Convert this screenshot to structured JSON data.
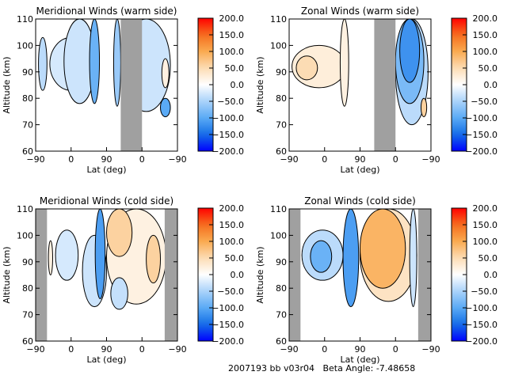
{
  "footer": {
    "text": "2007193 bb v03r04   Beta Angle: -7.48658",
    "dataset_id": "2007193",
    "version": "bb v03r04",
    "beta_angle_label": "Beta Angle:",
    "beta_angle": -7.48658
  },
  "chart_data": [
    {
      "type": "heatmap",
      "title": "Meridional Winds (warm side)",
      "xlabel": "Lat (deg)",
      "ylabel": "Altitude (km)",
      "xticks": [
        "-90",
        "0",
        "90",
        "0",
        "-90"
      ],
      "yticks": [
        "60",
        "70",
        "80",
        "90",
        "100",
        "110"
      ],
      "ylim": [
        60,
        110
      ],
      "colorbar": {
        "ticks": [
          "200.0",
          "150.0",
          "100.0",
          "50.0",
          "0.0",
          "-50.0",
          "-100.0",
          "-150.0",
          "-200.0"
        ],
        "range": [
          -200,
          200
        ]
      },
      "nodata_bands": [
        [
          0.6,
          0.75
        ]
      ],
      "blobs": [
        {
          "x": [
            0.02,
            0.08
          ],
          "y": [
            83,
            103
          ],
          "v": -40
        },
        {
          "x": [
            0.1,
            0.4
          ],
          "y": [
            83,
            103
          ],
          "v": -25
        },
        {
          "x": [
            0.2,
            0.42
          ],
          "y": [
            78,
            110
          ],
          "v": -30
        },
        {
          "x": [
            0.38,
            0.45
          ],
          "y": [
            78,
            110
          ],
          "v": -90
        },
        {
          "x": [
            0.55,
            0.6
          ],
          "y": [
            77,
            110
          ],
          "v": -60
        },
        {
          "x": [
            0.61,
            0.95
          ],
          "y": [
            75,
            110
          ],
          "v": -30
        },
        {
          "x": [
            0.62,
            0.72
          ],
          "y": [
            80,
            110
          ],
          "v": -90
        },
        {
          "x": [
            0.88,
            0.95
          ],
          "y": [
            73,
            80
          ],
          "v": -100
        },
        {
          "x": [
            0.89,
            0.94
          ],
          "y": [
            84,
            95
          ],
          "v": 20
        }
      ]
    },
    {
      "type": "heatmap",
      "title": "Zonal Winds (warm side)",
      "xlabel": "Lat (deg)",
      "ylabel": "Altitude (km)",
      "xticks": [
        "-90",
        "0",
        "90",
        "0",
        "-90"
      ],
      "yticks": [
        "60",
        "70",
        "80",
        "90",
        "100",
        "110"
      ],
      "ylim": [
        60,
        110
      ],
      "colorbar": {
        "ticks": [
          "200.0",
          "150.0",
          "100.0",
          "50.0",
          "0.0",
          "-50.0",
          "-100.0",
          "-150.0",
          "-200.0"
        ],
        "range": [
          -200,
          200
        ]
      },
      "nodata_bands": [
        [
          0.6,
          0.75
        ]
      ],
      "blobs": [
        {
          "x": [
            0.02,
            0.4
          ],
          "y": [
            84,
            100
          ],
          "v": 25
        },
        {
          "x": [
            0.05,
            0.2
          ],
          "y": [
            87,
            96
          ],
          "v": 50
        },
        {
          "x": [
            0.36,
            0.42
          ],
          "y": [
            77,
            110
          ],
          "v": 20
        },
        {
          "x": [
            0.75,
            0.98
          ],
          "y": [
            70,
            110
          ],
          "v": -40
        },
        {
          "x": [
            0.75,
            0.95
          ],
          "y": [
            78,
            110
          ],
          "v": -80
        },
        {
          "x": [
            0.78,
            0.92
          ],
          "y": [
            86,
            110
          ],
          "v": -120
        },
        {
          "x": [
            0.93,
            0.97
          ],
          "y": [
            73,
            80
          ],
          "v": 60
        }
      ]
    },
    {
      "type": "heatmap",
      "title": "Meridional Winds (cold side)",
      "xlabel": "Lat (deg)",
      "ylabel": "Altitude (km)",
      "xticks": [
        "-90",
        "0",
        "90",
        "0",
        "-90"
      ],
      "yticks": [
        "60",
        "70",
        "80",
        "90",
        "100",
        "110"
      ],
      "ylim": [
        60,
        110
      ],
      "colorbar": {
        "ticks": [
          "200.0",
          "150.0",
          "100.0",
          "50.0",
          "0.0",
          "-50.0",
          "-100.0",
          "-150.0",
          "-200.0"
        ],
        "range": [
          -200,
          200
        ]
      },
      "nodata_bands": [
        [
          0.0,
          0.08
        ],
        [
          0.91,
          1.0
        ]
      ],
      "blobs": [
        {
          "x": [
            0.09,
            0.12
          ],
          "y": [
            85,
            98
          ],
          "v": 20
        },
        {
          "x": [
            0.14,
            0.3
          ],
          "y": [
            83,
            102
          ],
          "v": -25
        },
        {
          "x": [
            0.33,
            0.5
          ],
          "y": [
            73,
            100
          ],
          "v": -30
        },
        {
          "x": [
            0.42,
            0.49
          ],
          "y": [
            76,
            110
          ],
          "v": -110
        },
        {
          "x": [
            0.5,
            0.92
          ],
          "y": [
            74,
            110
          ],
          "v": 20
        },
        {
          "x": [
            0.5,
            0.68
          ],
          "y": [
            92,
            110
          ],
          "v": 60
        },
        {
          "x": [
            0.78,
            0.88
          ],
          "y": [
            82,
            100
          ],
          "v": 60
        },
        {
          "x": [
            0.53,
            0.65
          ],
          "y": [
            72,
            84
          ],
          "v": -35
        }
      ]
    },
    {
      "type": "heatmap",
      "title": "Zonal Winds (cold side)",
      "xlabel": "Lat (deg)",
      "ylabel": "Altitude (km)",
      "xticks": [
        "-90",
        "0",
        "90",
        "0",
        "-90"
      ],
      "yticks": [
        "60",
        "70",
        "80",
        "90",
        "100",
        "110"
      ],
      "ylim": [
        60,
        110
      ],
      "colorbar": {
        "ticks": [
          "200.0",
          "150.0",
          "100.0",
          "50.0",
          "0.0",
          "-50.0",
          "-100.0",
          "-150.0",
          "-200.0"
        ],
        "range": [
          -200,
          200
        ]
      },
      "nodata_bands": [
        [
          0.0,
          0.08
        ],
        [
          0.91,
          1.0
        ]
      ],
      "blobs": [
        {
          "x": [
            0.09,
            0.38
          ],
          "y": [
            83,
            102
          ],
          "v": -40
        },
        {
          "x": [
            0.15,
            0.3
          ],
          "y": [
            86,
            98
          ],
          "v": -90
        },
        {
          "x": [
            0.38,
            0.49
          ],
          "y": [
            73,
            110
          ],
          "v": -110
        },
        {
          "x": [
            0.5,
            0.9
          ],
          "y": [
            75,
            110
          ],
          "v": 40
        },
        {
          "x": [
            0.5,
            0.82
          ],
          "y": [
            80,
            110
          ],
          "v": 90
        },
        {
          "x": [
            0.85,
            0.9
          ],
          "y": [
            73,
            110
          ],
          "v": -30
        }
      ]
    }
  ]
}
